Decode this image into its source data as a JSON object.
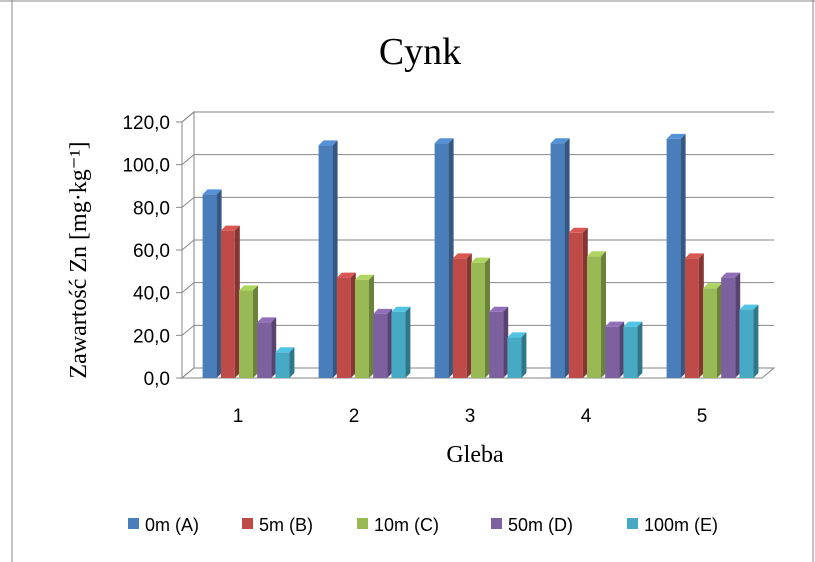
{
  "chart_data": {
    "type": "bar",
    "title": "Cynk",
    "xlabel": "Gleba",
    "ylabel": "Zawartość Zn [mg·kg⁻¹]",
    "categories": [
      "1",
      "2",
      "3",
      "4",
      "5"
    ],
    "y_ticks": [
      "0,0",
      "20,0",
      "40,0",
      "60,0",
      "80,0",
      "100,0",
      "120,0"
    ],
    "ylim": [
      0,
      120
    ],
    "grid": true,
    "legend_position": "bottom",
    "series": [
      {
        "name": "0m (A)",
        "color": "#4a7ebb",
        "values": [
          87,
          110,
          111,
          111,
          113
        ]
      },
      {
        "name": "5m (B)",
        "color": "#be4b48",
        "values": [
          70,
          48,
          57,
          69,
          57
        ]
      },
      {
        "name": "10m (C)",
        "color": "#98b954",
        "values": [
          42,
          47,
          55,
          58,
          43
        ]
      },
      {
        "name": "50m (D)",
        "color": "#7d60a0",
        "values": [
          27,
          31,
          32,
          25,
          48
        ]
      },
      {
        "name": "100m (E)",
        "color": "#46aac5",
        "values": [
          13,
          32,
          20,
          25,
          33
        ]
      }
    ]
  }
}
